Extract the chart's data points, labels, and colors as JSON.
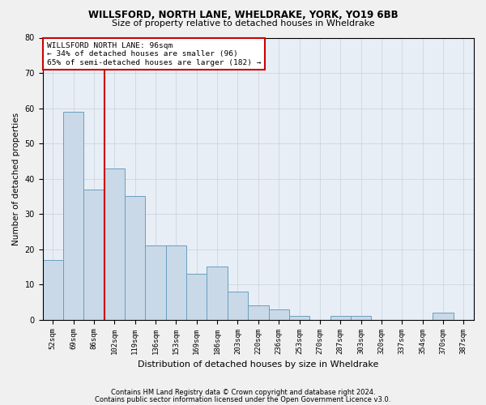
{
  "title1": "WILLSFORD, NORTH LANE, WHELDRAKE, YORK, YO19 6BB",
  "title2": "Size of property relative to detached houses in Wheldrake",
  "xlabel": "Distribution of detached houses by size in Wheldrake",
  "ylabel": "Number of detached properties",
  "footer1": "Contains HM Land Registry data © Crown copyright and database right 2024.",
  "footer2": "Contains public sector information licensed under the Open Government Licence v3.0.",
  "bin_labels": [
    "52sqm",
    "69sqm",
    "86sqm",
    "102sqm",
    "119sqm",
    "136sqm",
    "153sqm",
    "169sqm",
    "186sqm",
    "203sqm",
    "220sqm",
    "236sqm",
    "253sqm",
    "270sqm",
    "287sqm",
    "303sqm",
    "320sqm",
    "337sqm",
    "354sqm",
    "370sqm",
    "387sqm"
  ],
  "bar_heights": [
    17,
    59,
    37,
    43,
    35,
    21,
    21,
    13,
    15,
    8,
    4,
    3,
    1,
    0,
    1,
    1,
    0,
    0,
    0,
    2,
    0
  ],
  "bar_color": "#c9d9e8",
  "bar_edge_color": "#6a9fc0",
  "grid_color": "#c8d0dc",
  "background_color": "#e8eef5",
  "fig_background_color": "#f0f0f0",
  "annotation_box_color": "#cc0000",
  "annotation_text1": "WILLSFORD NORTH LANE: 96sqm",
  "annotation_text2": "← 34% of detached houses are smaller (96)",
  "annotation_text3": "65% of semi-detached houses are larger (182) →",
  "vline_x_index": 2.5,
  "ylim": [
    0,
    80
  ],
  "yticks": [
    0,
    10,
    20,
    30,
    40,
    50,
    60,
    70,
    80
  ]
}
